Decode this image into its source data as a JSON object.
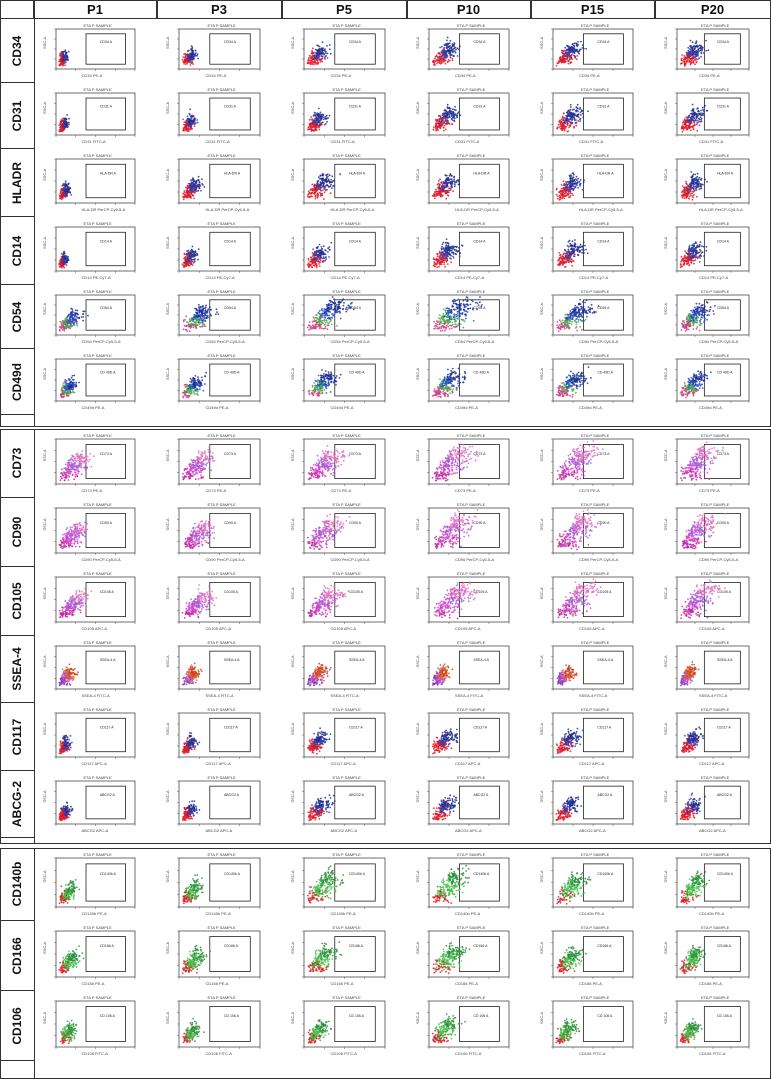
{
  "columns": [
    "P1",
    "P3",
    "P5",
    "P10",
    "P15",
    "P20"
  ],
  "panels": [
    {
      "rows": [
        {
          "label": "CD34",
          "gate": "CD34 A",
          "xlabel": "CD34 PE-A",
          "palette": "redblue",
          "spread": [
            0.15,
            0.25,
            0.35,
            0.45,
            0.45,
            0.45
          ]
        },
        {
          "label": "CD31",
          "gate": "CD31 A",
          "xlabel": "CD31 FITC-A",
          "palette": "redblue",
          "spread": [
            0.15,
            0.25,
            0.35,
            0.45,
            0.45,
            0.45
          ]
        },
        {
          "label": "HLADR",
          "gate": "HLA-DR A",
          "xlabel": "HLA-DR PerCP-Cy5-5-A",
          "palette": "redblue",
          "spread": [
            0.2,
            0.35,
            0.45,
            0.45,
            0.45,
            0.45
          ]
        },
        {
          "label": "CD14",
          "gate": "CD14 A",
          "xlabel": "CD14 PE-Cy7-A",
          "palette": "redblue",
          "spread": [
            0.15,
            0.25,
            0.35,
            0.45,
            0.45,
            0.45
          ]
        },
        {
          "label": "CD54",
          "gate": "CD54 A",
          "xlabel": "CD54 PerCP-Cy5-5-A",
          "palette": "greenblue",
          "spread": [
            0.4,
            0.55,
            0.7,
            0.75,
            0.6,
            0.6
          ]
        },
        {
          "label": "CD49d",
          "gate": "CD 49D A",
          "xlabel": "CD49d PE-A",
          "palette": "greenblue",
          "spread": [
            0.3,
            0.35,
            0.5,
            0.55,
            0.5,
            0.5
          ]
        }
      ]
    },
    {
      "rows": [
        {
          "label": "CD73",
          "gate": "CD73 A",
          "xlabel": "CD73 PE-A",
          "palette": "magenta",
          "spread": [
            0.5,
            0.55,
            0.6,
            0.7,
            0.7,
            0.7
          ]
        },
        {
          "label": "CD90",
          "gate": "CD90 A",
          "xlabel": "CD90 PerCP-Cy5-5-A",
          "palette": "magenta",
          "spread": [
            0.5,
            0.55,
            0.6,
            0.7,
            0.7,
            0.7
          ]
        },
        {
          "label": "CD105",
          "gate": "CD105 A",
          "xlabel": "CD105 APC-A",
          "palette": "magenta",
          "spread": [
            0.5,
            0.55,
            0.6,
            0.7,
            0.7,
            0.7
          ]
        },
        {
          "label": "SSEA-4",
          "gate": "SSEA-4 A",
          "xlabel": "SSEA-4 FITC-A",
          "palette": "purpleorange",
          "spread": [
            0.3,
            0.3,
            0.35,
            0.3,
            0.3,
            0.3
          ]
        },
        {
          "label": "CD117",
          "gate": "CD117 A",
          "xlabel": "CD117 APC-A",
          "palette": "redblue",
          "spread": [
            0.2,
            0.25,
            0.35,
            0.4,
            0.4,
            0.4
          ]
        },
        {
          "label": "ABCG-2",
          "gate": "ABCG2 A",
          "xlabel": "ABCG2 APC-A",
          "palette": "redblue",
          "spread": [
            0.2,
            0.25,
            0.4,
            0.4,
            0.4,
            0.4
          ]
        }
      ]
    },
    {
      "rows": [
        {
          "label": "CD140b",
          "gate": "CD140b A",
          "xlabel": "CD140b PE-A",
          "palette": "green",
          "spread": [
            0.3,
            0.35,
            0.55,
            0.6,
            0.5,
            0.5
          ]
        },
        {
          "label": "CD166",
          "gate": "CD166 A",
          "xlabel": "CD166 PE-A",
          "palette": "green",
          "spread": [
            0.35,
            0.4,
            0.5,
            0.55,
            0.45,
            0.45
          ]
        },
        {
          "label": "CD106",
          "gate": "CD 106 A",
          "xlabel": "CD106 FITC-A",
          "palette": "green",
          "spread": [
            0.3,
            0.3,
            0.35,
            0.45,
            0.35,
            0.35
          ]
        }
      ]
    }
  ],
  "sample_title": "ETA P SAMPLE",
  "y_axis_label": "SSC-A",
  "palettes": {
    "redblue": [
      "#e8202a",
      "#d01a30",
      "#2a3fb0",
      "#1f2f8f"
    ],
    "greenblue": [
      "#d63a8a",
      "#3fb63f",
      "#2a4cc8",
      "#1a2f9a"
    ],
    "magenta": [
      "#c02aa0",
      "#d24ad0",
      "#a060d8",
      "#e070c0"
    ],
    "purpleorange": [
      "#8a3ab8",
      "#c050c8",
      "#e07030",
      "#d04020"
    ],
    "green": [
      "#e0202a",
      "#38b840",
      "#52c85a",
      "#2a8f3a"
    ]
  },
  "colors": {
    "border": "#333333",
    "gate": "#222222",
    "axis": "#333333",
    "text": "#111111"
  }
}
